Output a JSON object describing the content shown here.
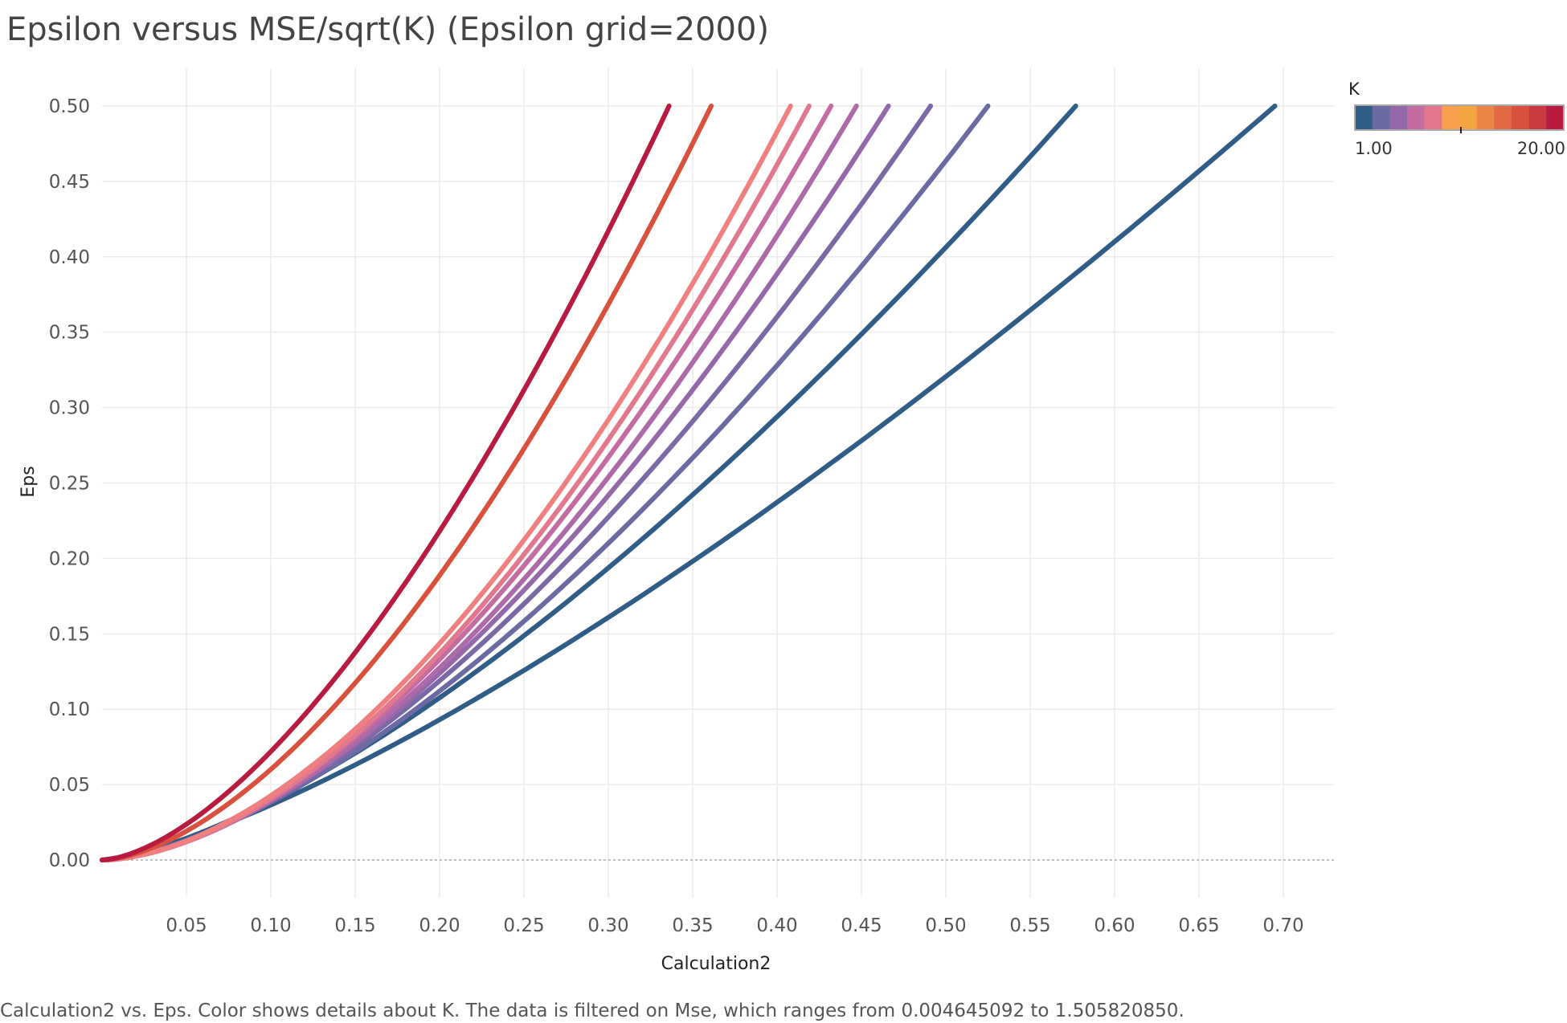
{
  "title": "Epsilon versus MSE/sqrt(K) (Epsilon grid=2000)",
  "caption": "Calculation2 vs. Eps.  Color shows details about K. The data is filtered on Mse, which ranges from 0.004645092 to 1.505820850.",
  "legend": {
    "title": "K",
    "min_label": "1.00",
    "max_label": "20.00",
    "palette": [
      "#2f5d87",
      "#6c6aa2",
      "#9568a9",
      "#c46ca2",
      "#e2788e",
      "#f6a04e",
      "#f3a640",
      "#ec8549",
      "#e26a44",
      "#d9503c",
      "#c93a40",
      "#b81a40"
    ]
  },
  "chart_data": {
    "type": "line",
    "title": "Epsilon versus MSE/sqrt(K) (Epsilon grid=2000)",
    "xlabel": "Calculation2",
    "ylabel": "Eps",
    "xlim": [
      0.0,
      0.73
    ],
    "ylim": [
      -0.025,
      0.525
    ],
    "x_ticks": [
      "0.05",
      "0.10",
      "0.15",
      "0.20",
      "0.25",
      "0.30",
      "0.35",
      "0.40",
      "0.45",
      "0.50",
      "0.55",
      "0.60",
      "0.65",
      "0.70"
    ],
    "y_ticks": [
      "0.00",
      "0.05",
      "0.10",
      "0.15",
      "0.20",
      "0.25",
      "0.30",
      "0.35",
      "0.40",
      "0.45",
      "0.50"
    ],
    "grid": true,
    "legend_position": "top-right",
    "series": [
      {
        "color": "#2f5d87",
        "x_end": 0.695,
        "shape": 1.35,
        "points": [
          [
            0.0,
            0.0
          ],
          [
            0.1,
            0.043
          ],
          [
            0.2,
            0.101
          ],
          [
            0.3,
            0.17
          ],
          [
            0.4,
            0.25
          ],
          [
            0.5,
            0.335
          ],
          [
            0.6,
            0.423
          ],
          [
            0.695,
            0.5
          ]
        ]
      },
      {
        "color": "#2f5d87",
        "x_end": 0.577,
        "shape": 1.45
      },
      {
        "color": "#6c6aa2",
        "x_end": 0.525,
        "shape": 1.55
      },
      {
        "color": "#7b69a6",
        "x_end": 0.491,
        "shape": 1.6
      },
      {
        "color": "#9568a9",
        "x_end": 0.466,
        "shape": 1.65
      },
      {
        "color": "#ac6aa8",
        "x_end": 0.447,
        "shape": 1.7
      },
      {
        "color": "#c46ca2",
        "x_end": 0.432,
        "shape": 1.72
      },
      {
        "color": "#e2788e",
        "x_end": 0.419,
        "shape": 1.75
      },
      {
        "color": "#f08080",
        "x_end": 0.408,
        "shape": 1.75
      },
      {
        "color": "#d9503c",
        "x_end": 0.361,
        "shape": 1.65
      },
      {
        "color": "#b81a40",
        "x_end": 0.336,
        "shape": 1.6
      }
    ]
  }
}
